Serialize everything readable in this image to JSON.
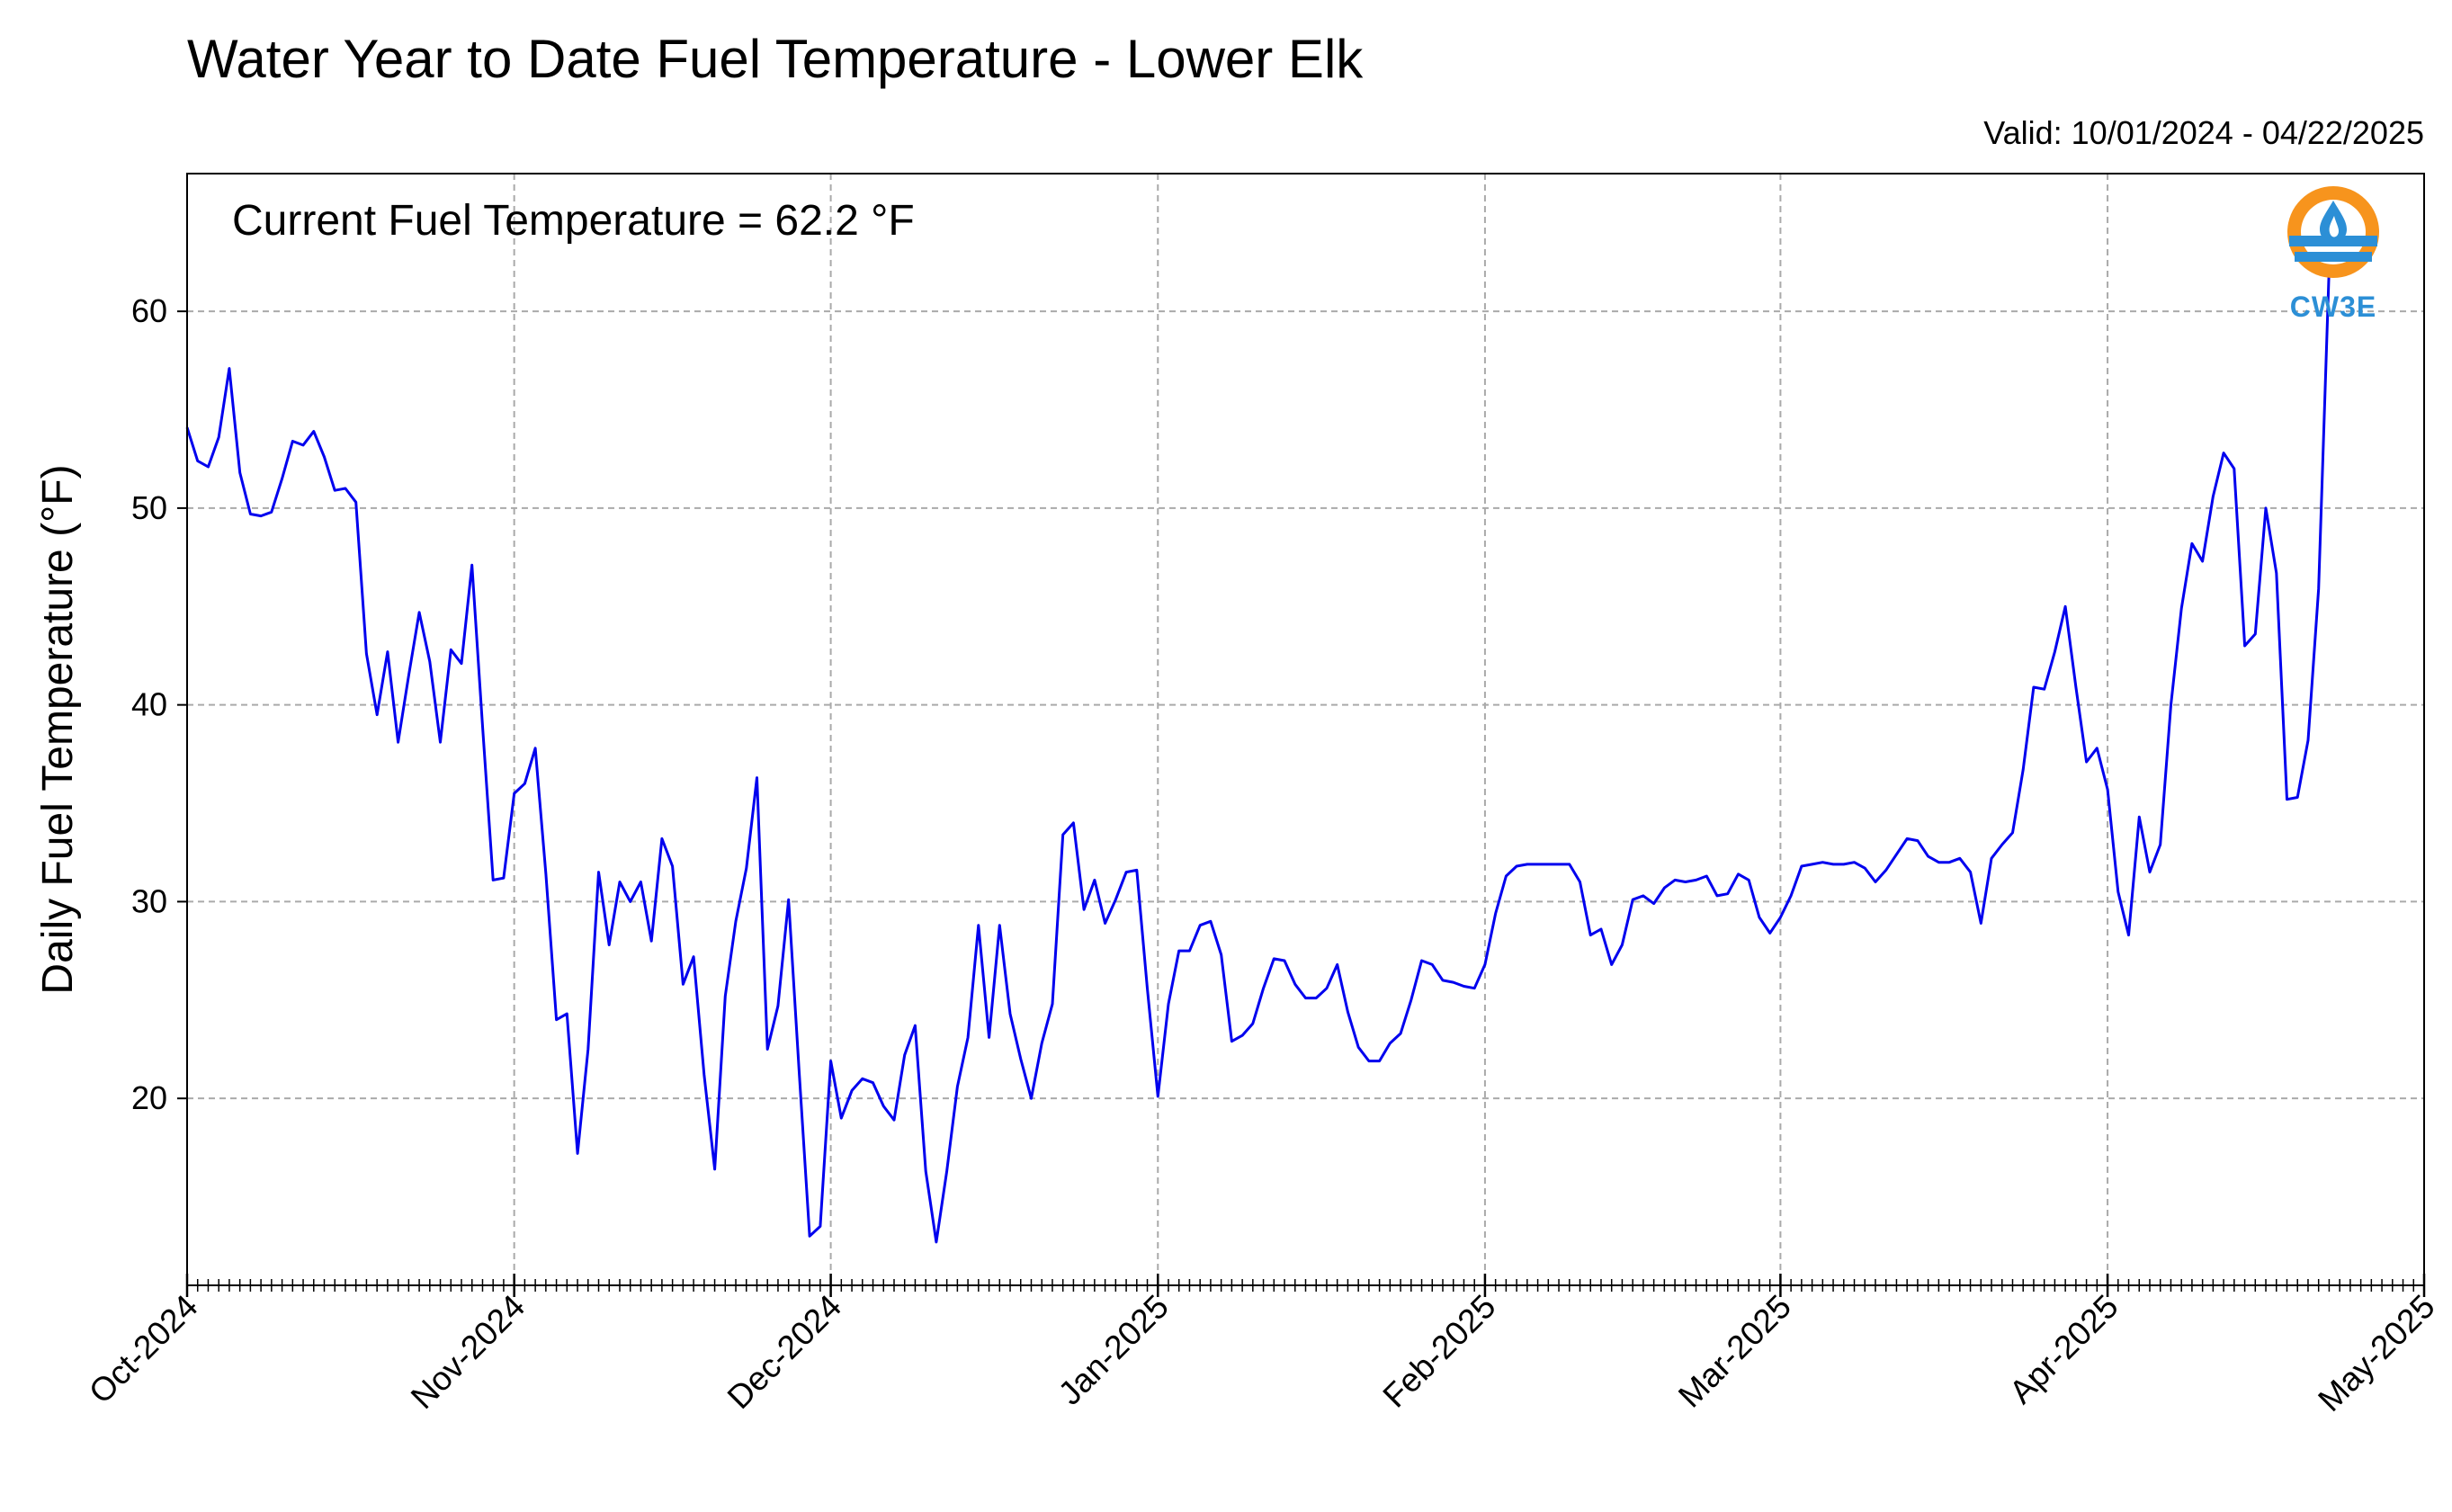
{
  "chart_data": {
    "type": "line",
    "title": "Water Year to Date Fuel Temperature - Lower Elk",
    "subtitle": "Valid: 10/01/2024 - 04/22/2025",
    "annotation": "Current Fuel Temperature = 62.2 °F",
    "ylabel": "Daily Fuel Temperature (°F)",
    "xlabel": "",
    "ylim": [
      10.5,
      67
    ],
    "yticks": [
      20,
      30,
      40,
      50,
      60
    ],
    "xlim": [
      "2024-10-01",
      "2025-05-01"
    ],
    "xtick_labels": [
      "Oct-2024",
      "Nov-2024",
      "Dec-2024",
      "Jan-2025",
      "Feb-2025",
      "Mar-2025",
      "Apr-2025",
      "May-2025"
    ],
    "xtick_dates": [
      "2024-10-01",
      "2024-11-01",
      "2024-12-01",
      "2025-01-01",
      "2025-02-01",
      "2025-03-01",
      "2025-04-01",
      "2025-05-01"
    ],
    "grid": true,
    "line_color": "#0000ee",
    "logo": {
      "text": "CW3E",
      "ring_color": "#f7941d",
      "wave_color": "#2c8fd6"
    },
    "series": [
      {
        "start_date": "2024-10-01",
        "values": [
          54.1,
          52.4,
          52.1,
          53.6,
          57.1,
          51.8,
          49.7,
          49.6,
          49.8,
          51.5,
          53.4,
          53.2,
          53.9,
          52.6,
          50.9,
          51.0,
          50.3,
          42.6,
          39.5,
          42.7,
          38.1,
          41.5,
          44.7,
          42.2,
          38.1,
          42.8,
          42.1,
          47.1,
          38.9,
          31.1,
          31.2,
          35.5,
          36.0,
          37.8,
          31.4,
          24.0,
          24.3,
          17.2,
          22.5,
          31.5,
          27.8,
          31.0,
          30.0,
          31.0,
          28.0,
          33.2,
          31.8,
          25.8,
          27.2,
          21.2,
          16.4,
          25.2,
          29.0,
          31.7,
          36.3,
          22.5,
          24.7,
          30.1,
          21.4,
          13.0,
          13.5,
          21.9,
          19.0,
          20.4,
          21.0,
          20.8,
          19.6,
          18.9,
          22.2,
          23.7,
          16.3,
          12.7,
          16.3,
          20.6,
          23.1,
          28.8,
          23.1,
          28.8,
          24.3,
          22.0,
          20.0,
          22.8,
          24.8,
          33.4,
          34.0,
          29.6,
          31.1,
          28.9,
          30.1,
          31.5,
          31.6,
          25.6,
          20.1,
          24.8,
          27.5,
          27.5,
          28.8,
          29.0,
          27.3,
          22.9,
          23.2,
          23.8,
          25.6,
          27.1,
          27.0,
          25.8,
          25.1,
          25.1,
          25.6,
          26.8,
          24.4,
          22.6,
          21.9,
          21.9,
          22.8,
          23.3,
          25.0,
          27.0,
          26.8,
          26.0,
          25.9,
          25.7,
          25.6,
          26.8,
          29.4,
          31.3,
          31.8,
          31.9,
          31.9,
          31.9,
          31.9,
          31.9,
          31.0,
          28.3,
          28.6,
          26.8,
          27.8,
          30.1,
          30.3,
          29.9,
          30.7,
          31.1,
          31.0,
          31.1,
          31.3,
          30.3,
          30.4,
          31.4,
          31.1,
          29.2,
          28.4,
          29.2,
          30.3,
          31.8,
          31.9,
          32.0,
          31.9,
          31.9,
          32.0,
          31.7,
          31.0,
          31.6,
          32.4,
          33.2,
          33.1,
          32.3,
          32.0,
          32.0,
          32.2,
          31.5,
          28.9,
          32.2,
          32.9,
          33.5,
          36.7,
          40.9,
          40.8,
          42.7,
          45.0,
          40.9,
          37.1,
          37.8,
          35.7,
          30.5,
          28.3,
          34.3,
          31.5,
          32.9,
          40.0,
          44.9,
          48.2,
          47.3,
          50.6,
          52.8,
          52.0,
          43.0,
          43.6,
          50.0,
          46.7,
          35.2,
          35.3,
          38.2,
          45.9,
          62.2
        ]
      }
    ]
  }
}
